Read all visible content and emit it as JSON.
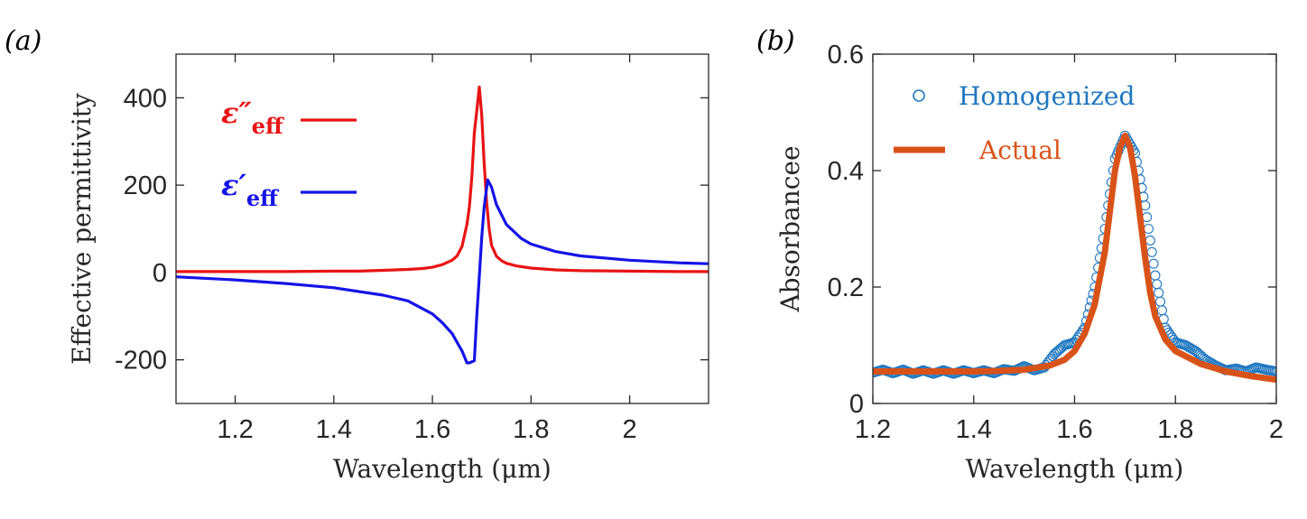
{
  "panels": {
    "a": "(a)",
    "b": "(b)"
  },
  "colors": {
    "eps_im": "#e81414",
    "eps_re": "#1414e6",
    "homogenized": "#1f77c0",
    "actual": "#d95319",
    "axis": "#262626"
  },
  "chart_data": [
    {
      "type": "line",
      "panel_label": "(a)",
      "xlabel": "Wavelength (μm)",
      "ylabel": "Effective permittivity",
      "xlim": [
        1.08,
        2.16
      ],
      "ylim": [
        -300,
        500
      ],
      "xticks": [
        1.2,
        1.4,
        1.6,
        1.8,
        2
      ],
      "xtick_labels": [
        "1.2",
        "1.4",
        "1.6",
        "1.8",
        "2"
      ],
      "yticks": [
        -200,
        0,
        200,
        400
      ],
      "ytick_labels": [
        "-200",
        "0",
        "200",
        "400"
      ],
      "grid": false,
      "legend_position": "top-left",
      "series": [
        {
          "name": "ε″eff",
          "legend_main": "ε″",
          "legend_sub": "eff",
          "color": "#e81414",
          "x": [
            1.08,
            1.2,
            1.3,
            1.4,
            1.45,
            1.5,
            1.55,
            1.58,
            1.6,
            1.62,
            1.64,
            1.65,
            1.66,
            1.67,
            1.675,
            1.68,
            1.685,
            1.69,
            1.695,
            1.7,
            1.705,
            1.71,
            1.715,
            1.72,
            1.73,
            1.74,
            1.75,
            1.77,
            1.8,
            1.85,
            1.9,
            2.0,
            2.1,
            2.16
          ],
          "y": [
            2,
            2,
            2,
            3,
            3,
            5,
            7,
            9,
            12,
            18,
            28,
            38,
            60,
            110,
            150,
            220,
            320,
            370,
            425,
            360,
            250,
            160,
            100,
            62,
            37,
            27,
            21,
            15,
            10,
            6,
            4,
            3,
            2,
            2
          ]
        },
        {
          "name": "ε′eff",
          "legend_main": "ε′",
          "legend_sub": "eff",
          "color": "#1414e6",
          "x": [
            1.08,
            1.2,
            1.3,
            1.4,
            1.5,
            1.55,
            1.6,
            1.62,
            1.64,
            1.66,
            1.67,
            1.675,
            1.685,
            1.69,
            1.695,
            1.7,
            1.705,
            1.712,
            1.72,
            1.73,
            1.75,
            1.78,
            1.8,
            1.85,
            1.9,
            2.0,
            2.1,
            2.16
          ],
          "y": [
            -10,
            -17,
            -25,
            -35,
            -52,
            -65,
            -95,
            -115,
            -140,
            -180,
            -207,
            -207,
            -202,
            -100,
            -10,
            80,
            150,
            212,
            195,
            155,
            110,
            78,
            65,
            48,
            38,
            28,
            22,
            20
          ]
        }
      ]
    },
    {
      "type": "line",
      "panel_label": "(b)",
      "xlabel": "Wavelength (μm)",
      "ylabel": "Absorbancee",
      "xlim": [
        1.2,
        2.0
      ],
      "ylim": [
        0,
        0.6
      ],
      "xticks": [
        1.2,
        1.4,
        1.6,
        1.8,
        2
      ],
      "xtick_labels": [
        "1.2",
        "1.4",
        "1.6",
        "1.8",
        "2"
      ],
      "yticks": [
        0,
        0.2,
        0.4,
        0.6
      ],
      "ytick_labels": [
        "0",
        "0.2",
        "0.4",
        "0.6"
      ],
      "grid": false,
      "legend_position": "top-left",
      "series": [
        {
          "name": "Homogenized",
          "marker": "circle",
          "color": "#1f77c0",
          "x": [
            1.2,
            1.22,
            1.24,
            1.26,
            1.28,
            1.3,
            1.32,
            1.34,
            1.36,
            1.38,
            1.4,
            1.42,
            1.44,
            1.46,
            1.48,
            1.5,
            1.52,
            1.54,
            1.56,
            1.58,
            1.6,
            1.62,
            1.64,
            1.66,
            1.68,
            1.7,
            1.72,
            1.74,
            1.76,
            1.78,
            1.8,
            1.82,
            1.84,
            1.86,
            1.88,
            1.9,
            1.92,
            1.94,
            1.96,
            1.98,
            2.0
          ],
          "y": [
            0.053,
            0.058,
            0.052,
            0.058,
            0.051,
            0.057,
            0.051,
            0.057,
            0.051,
            0.057,
            0.052,
            0.057,
            0.052,
            0.059,
            0.056,
            0.064,
            0.057,
            0.062,
            0.085,
            0.1,
            0.105,
            0.13,
            0.2,
            0.3,
            0.42,
            0.46,
            0.43,
            0.34,
            0.22,
            0.13,
            0.105,
            0.1,
            0.09,
            0.075,
            0.065,
            0.057,
            0.06,
            0.055,
            0.062,
            0.058,
            0.055
          ]
        },
        {
          "name": "Actual",
          "color": "#d95319",
          "x": [
            1.2,
            1.3,
            1.4,
            1.45,
            1.5,
            1.55,
            1.58,
            1.6,
            1.62,
            1.64,
            1.66,
            1.67,
            1.68,
            1.69,
            1.7,
            1.71,
            1.72,
            1.73,
            1.74,
            1.75,
            1.76,
            1.78,
            1.8,
            1.85,
            1.9,
            1.95,
            2.0
          ],
          "y": [
            0.055,
            0.055,
            0.055,
            0.056,
            0.058,
            0.065,
            0.075,
            0.09,
            0.12,
            0.17,
            0.26,
            0.33,
            0.4,
            0.44,
            0.46,
            0.44,
            0.39,
            0.32,
            0.25,
            0.19,
            0.15,
            0.11,
            0.09,
            0.068,
            0.055,
            0.047,
            0.041
          ]
        }
      ]
    }
  ]
}
